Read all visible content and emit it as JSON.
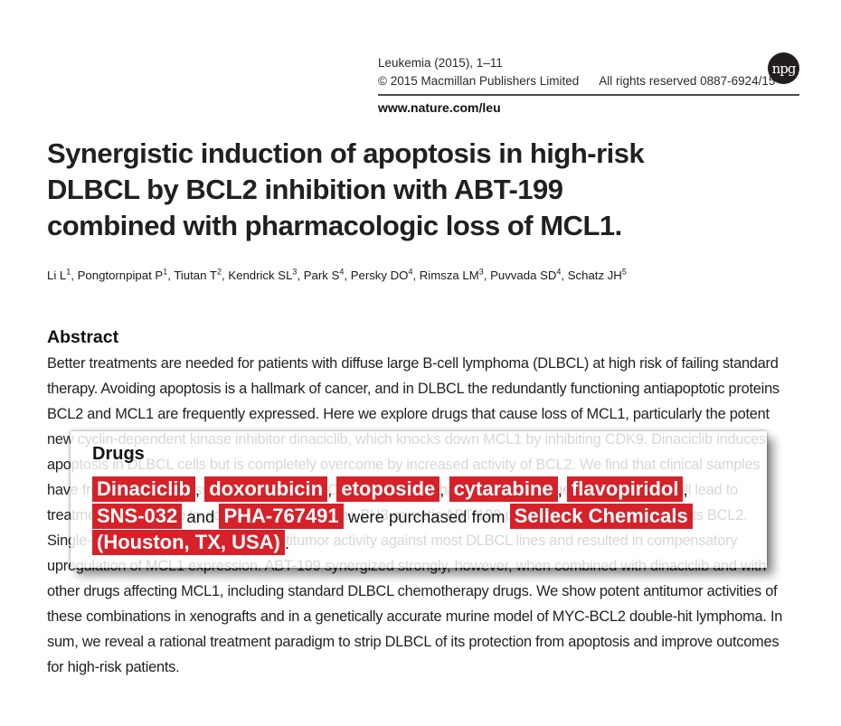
{
  "header": {
    "journal_line": "Leukemia (2015), 1–11",
    "copyright": "© 2015 Macmillan Publishers Limited",
    "rights": "All rights reserved 0887-6924/15",
    "logo_text": "npg",
    "site_url": "www.nature.com/leu"
  },
  "title": {
    "lines": [
      "Synergistic induction of apoptosis in high-risk",
      "DLBCL by BCL2 inhibition with ABT-199",
      "combined with pharmacologic loss of MCL1."
    ]
  },
  "authors_meta": {
    "separator": ", "
  },
  "authors": [
    {
      "name": "Li L",
      "sup": "1"
    },
    {
      "name": "Pongtornpipat P",
      "sup": "1"
    },
    {
      "name": "Tiutan T",
      "sup": "2"
    },
    {
      "name": "Kendrick SL",
      "sup": "3"
    },
    {
      "name": "Park S",
      "sup": "4"
    },
    {
      "name": "Persky DO",
      "sup": "4"
    },
    {
      "name": "Rimsza LM",
      "sup": "3"
    },
    {
      "name": "Puvvada SD",
      "sup": "4"
    },
    {
      "name": "Schatz JH",
      "sup": "5"
    }
  ],
  "abstract": {
    "heading": "Abstract",
    "lines": [
      "Better treatments are needed for patients with diffuse large B-cell lymphoma (DLBCL) at high risk of failing standard",
      "therapy. Avoiding apoptosis is a hallmark of cancer, and in DLBCL the redundantly functioning antiapoptotic proteins",
      "BCL2 and MCL1 are frequently expressed. Here we explore drugs that cause loss of MCL1, particularly the potent",
      "new cyclin-dependent kinase inhibitor dinaciclib, which knocks down MCL1 by inhibiting CDK9. Dinaciclib induces",
      "apoptosis in DLBCL cells but is completely overcome by increased activity of BCL2. We find that clinical samples",
      "have frequent co-expression of MCL1 and BCL2, suggesting that therapeutic targeting of only one will lead to",
      "treatment failures due to activity of the other. The BH3 mimetic ABT-199 potently and specifically targets BCL2.",
      "Single-agent ABT-199 had modest antitumor activity against most DLBCL lines and resulted in compensatory",
      "upregulation of MCL1 expression. ABT-199 synergized strongly, however, when combined with dinaciclib and with",
      "other drugs affecting MCL1, including standard DLBCL chemotherapy drugs. We show potent antitumor activities of",
      "these combinations in xenografts and in a genetically accurate murine model of MYC-BCL2 double-hit lymphoma. In",
      "sum, we reveal a rational treatment paradigm to strip DLBCL of its protection from apoptosis and improve outcomes",
      "for high-risk patients."
    ]
  },
  "overlay": {
    "heading": "Drugs",
    "highlight_color": "#d62129",
    "rows": [
      [
        {
          "text": "Dinaciclib",
          "highlight": true
        },
        {
          "text": ", ",
          "highlight": false
        },
        {
          "text": "doxorubicin",
          "highlight": true
        },
        {
          "text": ", ",
          "highlight": false
        },
        {
          "text": "etoposide",
          "highlight": true
        },
        {
          "text": ", ",
          "highlight": false
        },
        {
          "text": "cytarabine",
          "highlight": true
        },
        {
          "text": ", ",
          "highlight": false
        },
        {
          "text": "flavopiridol",
          "highlight": true
        },
        {
          "text": ",",
          "highlight": false
        }
      ],
      [
        {
          "text": "SNS-032",
          "highlight": true
        },
        {
          "text": " and ",
          "highlight": false
        },
        {
          "text": "PHA-767491",
          "highlight": true
        },
        {
          "text": " were purchased from ",
          "highlight": false
        },
        {
          "text": "Selleck Chemicals",
          "highlight": true
        }
      ],
      [
        {
          "text": "(Houston, TX, USA)",
          "highlight": true
        },
        {
          "text": ".",
          "highlight": false
        }
      ]
    ]
  },
  "colors": {
    "highlight_red": "#d62129",
    "logo_black": "#221e1f",
    "faded_text_effect": "rgba(255,255,255,0.82)"
  }
}
